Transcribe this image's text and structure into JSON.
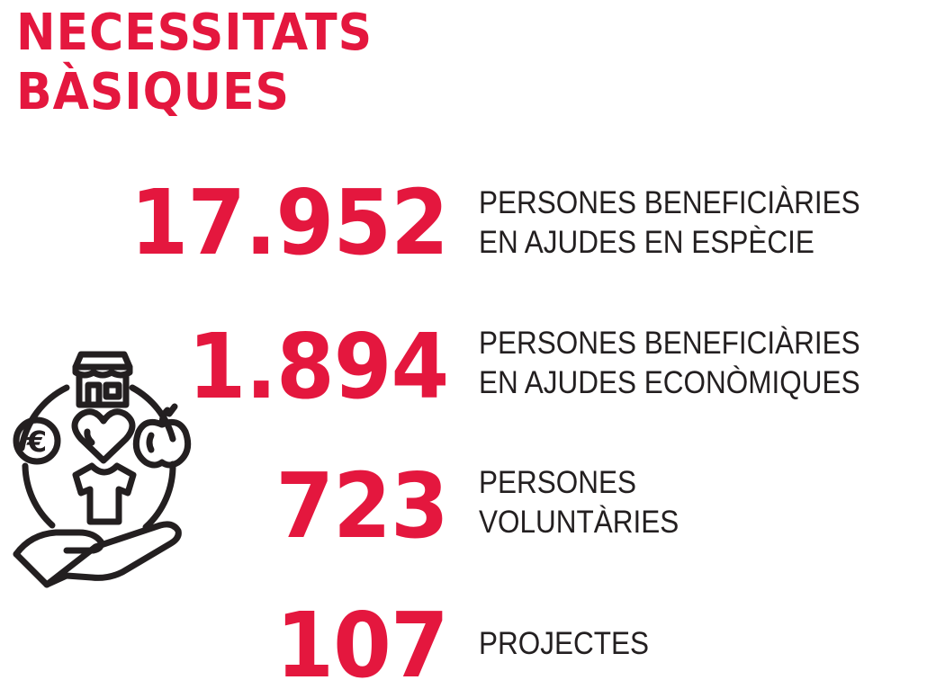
{
  "title": {
    "line1": "NECESSITATS",
    "line2": "BÀSIQUES"
  },
  "colors": {
    "accent": "#e4173e",
    "text": "#231f20",
    "icon_stroke": "#231f20"
  },
  "stats": [
    {
      "value": "17.952",
      "label_line1": "PERSONES BENEFICIÀRIES",
      "label_line2": "EN AJUDES EN ESPÈCIE"
    },
    {
      "value": "1.894",
      "label_line1": "PERSONES BENEFICIÀRIES",
      "label_line2": "EN AJUDES ECONÒMIQUES"
    },
    {
      "value": "723",
      "label_line1": "PERSONES",
      "label_line2": "VOLUNTÀRIES"
    },
    {
      "value": "107",
      "label_line1": "PROJECTES",
      "label_line2": ""
    }
  ],
  "illustration": {
    "icons": [
      "shop-icon",
      "euro-coin-icon",
      "heart-icon",
      "apple-icon",
      "tshirt-icon",
      "open-hand-icon"
    ],
    "currency_symbol": "€"
  }
}
